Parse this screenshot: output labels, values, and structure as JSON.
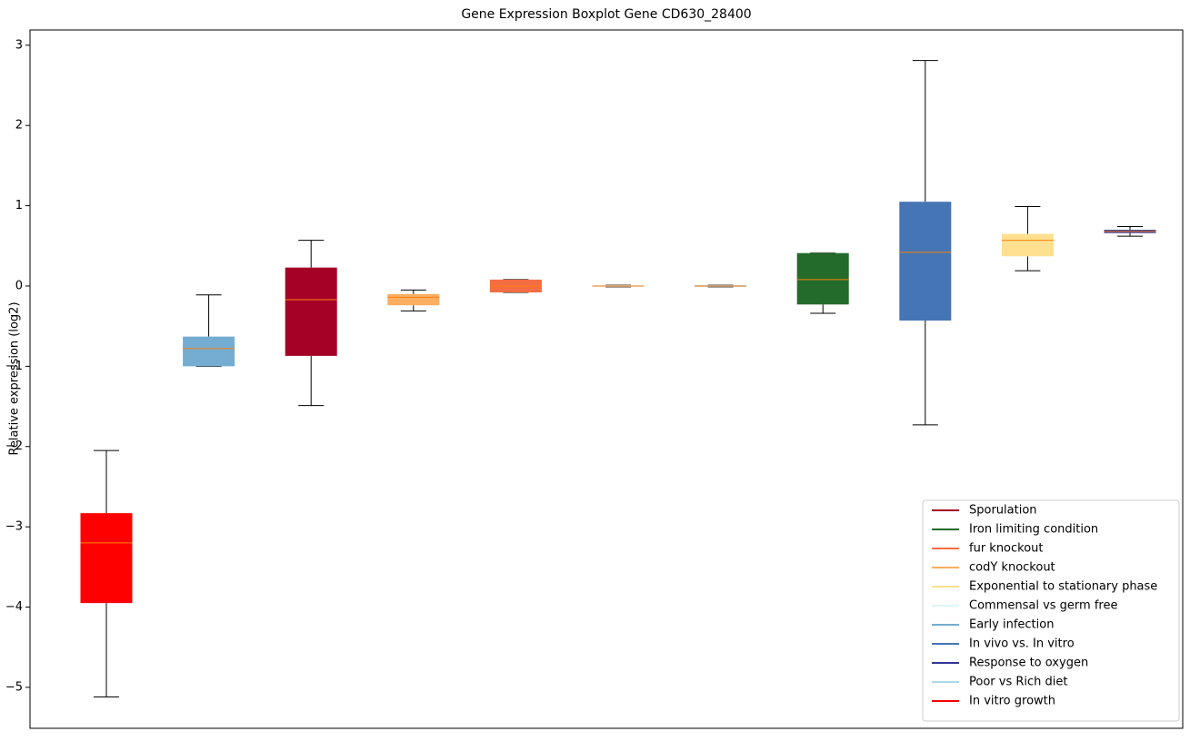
{
  "chart_data": {
    "type": "boxplot",
    "title": "Gene Expression Boxplot Gene CD630_28400",
    "y_label": "Relative expression (log2)",
    "ylim": [
      -5.51,
      3.19
    ],
    "yticks": [
      {
        "value": -5,
        "label": "−5"
      },
      {
        "value": -4,
        "label": "−4"
      },
      {
        "value": -3,
        "label": "−3"
      },
      {
        "value": -2,
        "label": "−2"
      },
      {
        "value": -1,
        "label": "−1"
      },
      0,
      1,
      2,
      3
    ],
    "median_color": "#ff7f0e",
    "boxes": [
      {
        "color": "#ff0000",
        "values": [
          -5.12,
          -3.95,
          -3.2,
          -2.83,
          -2.05
        ]
      },
      {
        "color": "#74add1",
        "values": [
          -1.0,
          -1.0,
          -0.78,
          -0.63,
          -0.11
        ]
      },
      {
        "color": "#a50026",
        "values": [
          -1.49,
          -0.87,
          -0.17,
          0.23,
          0.57
        ]
      },
      {
        "color": "#fdae61",
        "values": [
          -0.31,
          -0.24,
          -0.14,
          -0.1,
          -0.05
        ]
      },
      {
        "color": "#f46d43",
        "values": [
          -0.08,
          -0.08,
          0,
          0.08,
          0.08
        ]
      },
      {
        "color": "#e0f3f8",
        "values": [
          -0.01,
          -0.01,
          0,
          0.01,
          0.01
        ]
      },
      {
        "color": "#abd9e9",
        "values": [
          -0.01,
          -0.01,
          0,
          0.01,
          0.01
        ]
      },
      {
        "color": "#236b2a",
        "values": [
          -0.34,
          -0.23,
          0.08,
          0.41,
          0.41
        ]
      },
      {
        "color": "#4575b4",
        "values": [
          -1.73,
          -0.43,
          0.42,
          1.05,
          2.81
        ]
      },
      {
        "color": "#fee090",
        "values": [
          0.19,
          0.37,
          0.57,
          0.65,
          0.99
        ]
      },
      {
        "color": "#313695",
        "values": [
          0.62,
          0.66,
          0.68,
          0.7,
          0.74
        ]
      }
    ],
    "legend": {
      "loc": "lower right",
      "entries": [
        {
          "name": "Sporulation",
          "color": "#a50026"
        },
        {
          "name": "Iron limiting condition",
          "color": "#236b2a"
        },
        {
          "name": "fur knockout",
          "color": "#f46d43"
        },
        {
          "name": "codY knockout",
          "color": "#fdae61"
        },
        {
          "name": "Exponential to stationary phase",
          "color": "#fee090"
        },
        {
          "name": "Commensal vs germ free",
          "color": "#e0f3f8"
        },
        {
          "name": "Early infection",
          "color": "#74add1"
        },
        {
          "name": "In vivo vs. In vitro",
          "color": "#4575b4"
        },
        {
          "name": "Response to oxygen",
          "color": "#313695"
        },
        {
          "name": "Poor vs Rich diet",
          "color": "#abd9e9"
        },
        {
          "name": "In vitro growth",
          "color": "#ff0000"
        }
      ]
    }
  }
}
